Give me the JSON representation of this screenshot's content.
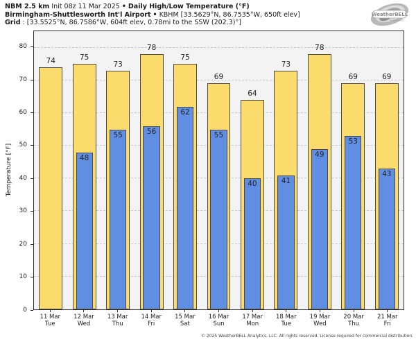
{
  "header": {
    "line1": {
      "bold": "NBM 2.5 km",
      "regular": "Init 08z 11 Mar 2025",
      "sep": "•",
      "title": "Daily High/Low Temperature (°F)"
    },
    "line2": {
      "bold": "Birmingham-Shuttlesworth Int'l Airport",
      "sep": "•",
      "regular": "KBHM [33.5629°N, 86.7535°W, 650ft elev]"
    },
    "line3": {
      "bold": "Grid",
      "regular": ": [33.5525°N, 86.7586°W, 604ft elev, 0.78mi to the SSW (202.3)°]"
    }
  },
  "logo": {
    "text": "WeatherBELL",
    "subtext": "Analytics LLC"
  },
  "chart_data": {
    "type": "bar",
    "title": "Daily High/Low Temperature (°F)",
    "ylabel": "Temperature [°F]",
    "categories": [
      "11 Mar",
      "12 Mar",
      "13 Mar",
      "14 Mar",
      "15 Mar",
      "16 Mar",
      "17 Mar",
      "18 Mar",
      "19 Mar",
      "20 Mar",
      "21 Mar"
    ],
    "weekdays": [
      "Tue",
      "Wed",
      "Thu",
      "Fri",
      "Sat",
      "Sun",
      "Mon",
      "Tue",
      "Wed",
      "Thu",
      "Fri"
    ],
    "series": [
      {
        "name": "Daily High",
        "color": "#fcdb6d",
        "values": [
          74,
          75,
          73,
          78,
          75,
          69,
          64,
          73,
          78,
          69,
          69
        ]
      },
      {
        "name": "Daily Low",
        "color": "#5f8ee3",
        "values": [
          null,
          48,
          55,
          56,
          62,
          55,
          40,
          41,
          49,
          53,
          43
        ]
      }
    ],
    "ylim": [
      0,
      85
    ],
    "yticks": [
      0,
      10,
      20,
      30,
      40,
      50,
      60,
      70,
      80
    ],
    "grid": true,
    "legend": "none",
    "plot_background": "#f3f3f3",
    "grid_color": "#c9c9c9"
  },
  "footer": {
    "copyright": "© 2025 WeatherBELL Analytics, LLC. All rights reserved. License required for commercial distribution."
  }
}
